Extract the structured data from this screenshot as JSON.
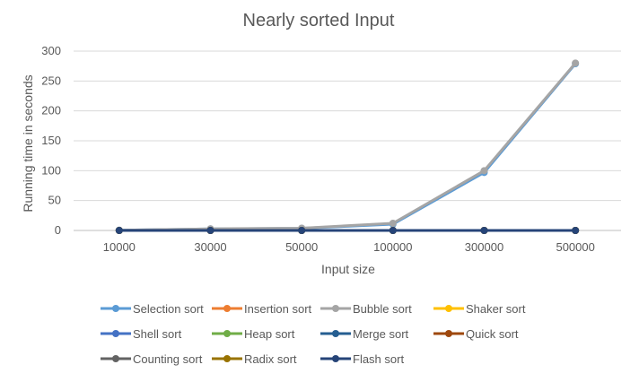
{
  "chart_data": {
    "type": "line",
    "title": "Nearly sorted Input",
    "xlabel": "Input size",
    "ylabel": "Running time in seconds",
    "categories": [
      "10000",
      "30000",
      "50000",
      "100000",
      "300000",
      "500000"
    ],
    "ylim": [
      0,
      300
    ],
    "yticks": [
      0,
      50,
      100,
      150,
      200,
      250,
      300
    ],
    "grid": true,
    "legend_position": "bottom",
    "series": [
      {
        "name": "Selection sort",
        "color": "#5B9BD5",
        "values": [
          0.3,
          2.6,
          3.5,
          10.5,
          97,
          279
        ]
      },
      {
        "name": "Insertion sort",
        "color": "#ED7D31",
        "values": [
          0,
          0,
          0,
          0,
          0,
          0
        ]
      },
      {
        "name": "Bubble sort",
        "color": "#A5A5A5",
        "values": [
          0.3,
          2.7,
          3.8,
          12,
          100,
          280
        ]
      },
      {
        "name": "Shaker sort",
        "color": "#FFC000",
        "values": [
          0,
          0,
          0,
          0,
          0,
          0
        ]
      },
      {
        "name": "Shell sort",
        "color": "#4472C4",
        "values": [
          0,
          0,
          0,
          0,
          0,
          0
        ]
      },
      {
        "name": "Heap sort",
        "color": "#70AD47",
        "values": [
          0,
          0,
          0,
          0,
          0,
          0
        ]
      },
      {
        "name": "Merge sort",
        "color": "#255E91",
        "values": [
          0,
          0,
          0,
          0,
          0,
          0
        ]
      },
      {
        "name": "Quick sort",
        "color": "#9E480E",
        "values": [
          0,
          0,
          0,
          0,
          0,
          0
        ]
      },
      {
        "name": "Counting sort",
        "color": "#636363",
        "values": [
          0,
          0,
          0,
          0,
          0,
          0
        ]
      },
      {
        "name": "Radix sort",
        "color": "#997300",
        "values": [
          0,
          0,
          0,
          0,
          0,
          0
        ]
      },
      {
        "name": "Flash sort",
        "color": "#264478",
        "values": [
          0,
          0,
          0,
          0,
          0,
          0
        ]
      }
    ]
  }
}
